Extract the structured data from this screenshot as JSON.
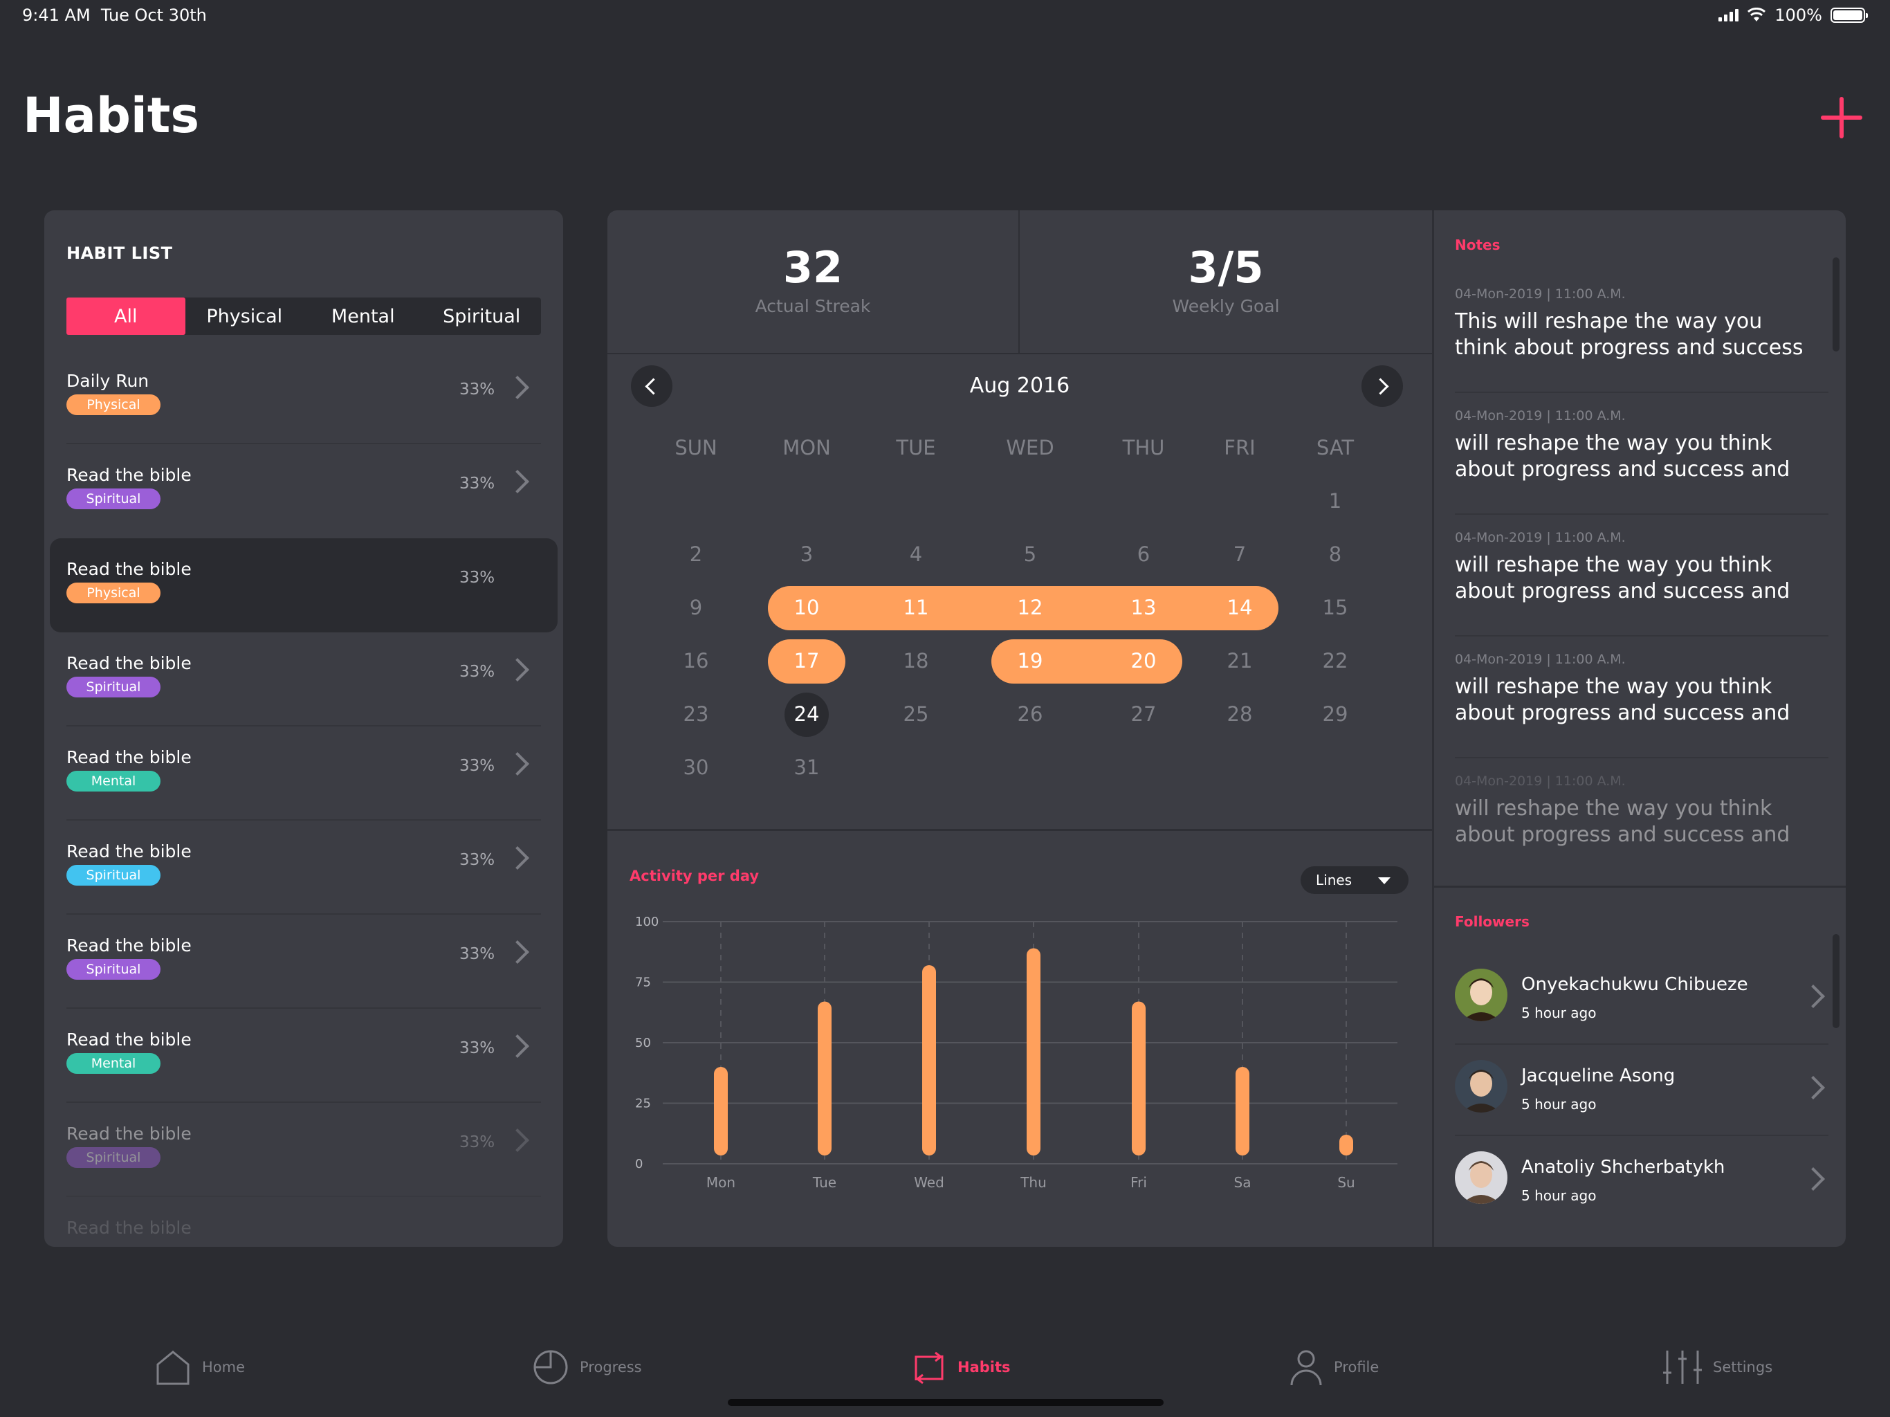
{
  "status_bar": {
    "time": "9:41 AM",
    "date": "Tue Oct 30th",
    "battery": "100%"
  },
  "header": {
    "title": "Habits",
    "add_icon": "plus-icon"
  },
  "colors": {
    "accent": "#ff3b6b",
    "orange": "#ffa05c",
    "panel": "#3c3d44",
    "background": "#2b2c31"
  },
  "habit_list": {
    "heading": "HABIT LIST",
    "filters": [
      "All",
      "Physical",
      "Mental",
      "Spiritual"
    ],
    "active_filter": "All",
    "items": [
      {
        "name": "Daily Run",
        "tag": "Physical",
        "percent": "33%"
      },
      {
        "name": "Read the bible",
        "tag": "Spiritual",
        "percent": "33%"
      },
      {
        "name": "Read the bible",
        "tag": "Physical",
        "percent": "33%"
      },
      {
        "name": "Read the bible",
        "tag": "Spiritual",
        "percent": "33%"
      },
      {
        "name": "Read the bible",
        "tag": "Mental",
        "percent": "33%"
      },
      {
        "name": "Read the bible",
        "tag": "Spiritual",
        "percent": "33%"
      },
      {
        "name": "Read the bible",
        "tag": "Spiritual",
        "percent": "33%"
      },
      {
        "name": "Read the bible",
        "tag": "Mental",
        "percent": "33%"
      },
      {
        "name": "Read the bible",
        "tag": "Spiritual",
        "percent": "33%"
      },
      {
        "name": "Read the bible",
        "tag": "",
        "percent": ""
      }
    ]
  },
  "stats": {
    "streak_value": "32",
    "streak_label": "Actual Streak",
    "goal_value": "3/5",
    "goal_label": "Weekly Goal"
  },
  "calendar": {
    "month": "Aug 2016",
    "weekdays": [
      "SUN",
      "MON",
      "TUE",
      "WED",
      "THU",
      "FRI",
      "SAT"
    ],
    "first_weekday_index": 6,
    "days_in_month": 31,
    "highlighted_days": [
      10,
      11,
      12,
      13,
      14,
      17,
      19,
      20
    ],
    "today": 24
  },
  "activity": {
    "title": "Activity per day",
    "view_select": "Lines"
  },
  "chart_data": {
    "type": "bar",
    "categories": [
      "Mon",
      "Tue",
      "Wed",
      "Thu",
      "Fri",
      "Sa",
      "Su"
    ],
    "values": [
      40,
      67,
      82,
      89,
      67,
      40,
      12
    ],
    "ylim": [
      0,
      100
    ],
    "yticks": [
      0,
      25,
      50,
      75,
      100
    ],
    "grid": true,
    "color": "#ffa05c"
  },
  "notes": {
    "title": "Notes",
    "items": [
      {
        "meta": "04-Mon-2019  |  11:00 A.M.",
        "text": "This will reshape the way you think about progress and success"
      },
      {
        "meta": "04-Mon-2019  |  11:00 A.M.",
        "text": "will reshape the way you think about progress and success and"
      },
      {
        "meta": "04-Mon-2019  |  11:00 A.M.",
        "text": "will reshape the way you think about progress and success and"
      },
      {
        "meta": "04-Mon-2019  |  11:00 A.M.",
        "text": "will reshape the way you think about progress and success and"
      },
      {
        "meta": "04-Mon-2019  |  11:00 A.M.",
        "text": "will reshape the way you think about progress and success and"
      }
    ]
  },
  "followers": {
    "title": "Followers",
    "items": [
      {
        "name": "Onyekachukwu Chibueze",
        "time": "5 hour ago"
      },
      {
        "name": "Jacqueline Asong",
        "time": "5 hour ago"
      },
      {
        "name": "Anatoliy Shcherbatykh",
        "time": "5 hour ago"
      }
    ]
  },
  "tabs": [
    {
      "label": "Home",
      "icon": "home-icon"
    },
    {
      "label": "Progress",
      "icon": "pie-chart-icon"
    },
    {
      "label": "Habits",
      "icon": "repeat-icon"
    },
    {
      "label": "Profile",
      "icon": "user-icon"
    },
    {
      "label": "Settings",
      "icon": "sliders-icon"
    }
  ],
  "active_tab": "Habits"
}
